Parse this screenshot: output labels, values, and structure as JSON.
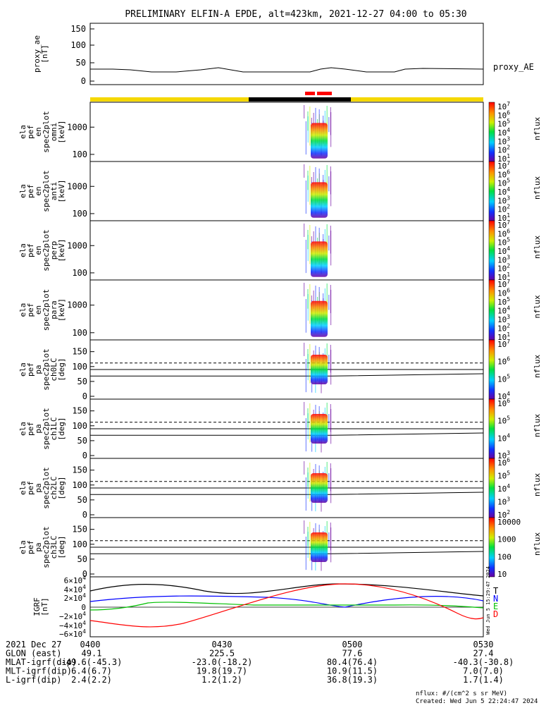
{
  "title": "PRELIMINARY ELFIN-A EPDE, alt=423km, 2021-12-27 04:00 to 05:30",
  "colors": {
    "bar_yellow": "#f5d800",
    "bar_black": "#000000",
    "bar_red": "#ff0000",
    "line": "#000000"
  },
  "chart_data": {
    "type": "line",
    "panels": [
      {
        "id": "proxy_ae",
        "ylabel": [
          "proxy_ae",
          "[nT]"
        ],
        "ticks": [
          "150",
          "100",
          "50",
          "0"
        ],
        "right_label": "proxy_AE"
      },
      {
        "id": "en_omni",
        "ylabel": [
          "ela",
          "pef",
          "en",
          "spec2plot",
          "omni",
          "[keV]"
        ],
        "ticks": [
          "1000",
          "100"
        ],
        "cbar": [
          "10^7",
          "10^6",
          "10^5",
          "10^4",
          "10^3",
          "10^2",
          "10^1"
        ],
        "unit": "nflux"
      },
      {
        "id": "en_anti",
        "ylabel": [
          "ela",
          "pef",
          "en",
          "spec2plot",
          "anti",
          "[keV]"
        ],
        "ticks": [
          "1000",
          "100"
        ],
        "cbar": [
          "10^7",
          "10^6",
          "10^5",
          "10^4",
          "10^3",
          "10^2",
          "10^1"
        ],
        "unit": "nflux"
      },
      {
        "id": "en_perp",
        "ylabel": [
          "ela",
          "pef",
          "en",
          "spec2plot",
          "perp",
          "[keV]"
        ],
        "ticks": [
          "1000",
          "100"
        ],
        "cbar": [
          "10^7",
          "10^6",
          "10^5",
          "10^4",
          "10^3",
          "10^2",
          "10^1"
        ],
        "unit": "nflux"
      },
      {
        "id": "en_para",
        "ylabel": [
          "ela",
          "pef",
          "en",
          "spec2plot",
          "para",
          "[keV]"
        ],
        "ticks": [
          "1000",
          "100"
        ],
        "cbar": [
          "10^7",
          "10^6",
          "10^5",
          "10^4",
          "10^3",
          "10^2",
          "10^1"
        ],
        "unit": "nflux"
      },
      {
        "id": "pa_ch0",
        "ylabel": [
          "ela",
          "pef",
          "pa",
          "spec2plot",
          "ch0LC",
          "[deg]"
        ],
        "ticks": [
          "150",
          "100",
          "50",
          "0"
        ],
        "cbar": [
          "10^7",
          "10^6",
          "10^5",
          "10^4"
        ],
        "unit": "nflux"
      },
      {
        "id": "pa_ch1",
        "ylabel": [
          "ela",
          "pef",
          "pa",
          "spec2plot",
          "ch1LC",
          "[deg]"
        ],
        "ticks": [
          "150",
          "100",
          "50",
          "0"
        ],
        "cbar": [
          "10^6",
          "10^5",
          "10^4",
          "10^3"
        ],
        "unit": "nflux"
      },
      {
        "id": "pa_ch2",
        "ylabel": [
          "ela",
          "pef",
          "pa",
          "spec2plot",
          "ch2LC",
          "[deg]"
        ],
        "ticks": [
          "150",
          "100",
          "50",
          "0"
        ],
        "cbar": [
          "10^6",
          "10^5",
          "10^4",
          "10^3",
          "10^2"
        ],
        "unit": "nflux"
      },
      {
        "id": "pa_ch3",
        "ylabel": [
          "ela",
          "pef",
          "pa",
          "spec2plot",
          "ch3LC",
          "[deg]"
        ],
        "ticks": [
          "150",
          "100",
          "50",
          "0"
        ],
        "cbar": [
          "10000",
          "1000",
          "100",
          "10"
        ],
        "unit": "nflux"
      },
      {
        "id": "igrf",
        "ylabel": [
          "IGRF",
          "[nT]"
        ],
        "ticks": [
          "6×10^4",
          "4×10^4",
          "2×10^4",
          "0",
          "−2×10^4",
          "−4×10^4",
          "−6×10^4"
        ],
        "legend": [
          {
            "name": "T",
            "color": "#000000"
          },
          {
            "name": "N",
            "color": "#0000ff"
          },
          {
            "name": "E",
            "color": "#00c000"
          },
          {
            "name": "D",
            "color": "#ff0000"
          }
        ]
      }
    ],
    "time_ticks": [
      "0400",
      "0430",
      "0500",
      "0530"
    ],
    "proxy_ae_level_nT": 35
  },
  "footer": {
    "rows": [
      [
        "2021 Dec 27",
        "",
        "",
        "",
        ""
      ],
      [
        "GLON (east)",
        "49.1",
        "225.5",
        "77.6",
        "27.4"
      ],
      [
        "MLAT-igrf(dip)",
        "-49.6(-45.3)",
        "-23.0(-18.2)",
        "80.4(76.4)",
        "-40.3(-30.8)"
      ],
      [
        "MLT-igrf(dip)",
        "6.4(6.7)",
        "19.8(19.7)",
        "10.9(11.5)",
        "7.0(7.0)"
      ],
      [
        "L-igrf(dip)",
        "2.4(2.2)",
        "1.2(1.2)",
        "36.8(19.3)",
        "1.7(1.4)"
      ]
    ],
    "unit_note": "nflux: #/(cm^2 s sr MeV)",
    "created": "Created: Wed Jun  5 22:24:47 2024",
    "side_stamp": "Wed Jun 5 15:29:47 2024"
  }
}
